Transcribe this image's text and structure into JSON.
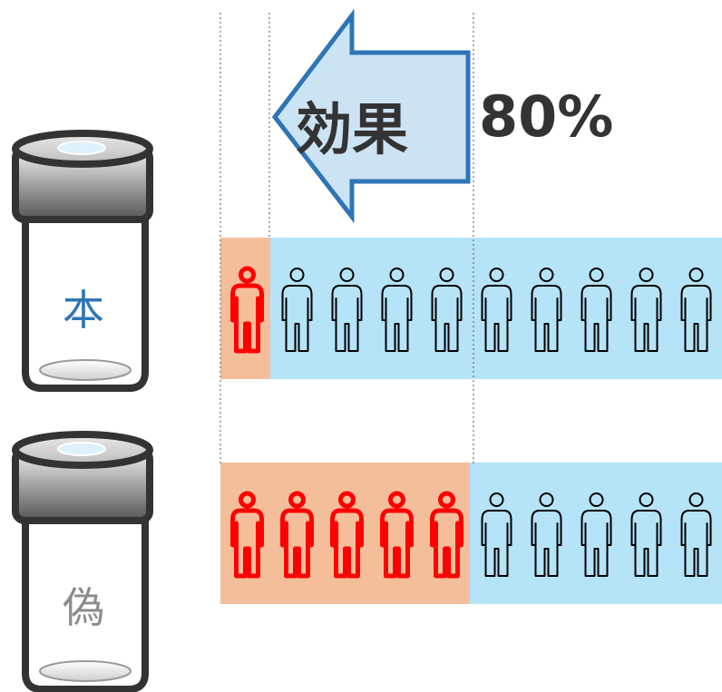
{
  "title": {
    "effect_text": "効果",
    "percent_text": "80%"
  },
  "vials": [
    {
      "label": "本",
      "label_color": "#2e75b6"
    },
    {
      "label": "偽",
      "label_color": "#8c8c8c"
    }
  ],
  "groups": [
    {
      "vial": "本",
      "total": 10,
      "affected": 1
    },
    {
      "vial": "偽",
      "total": 10,
      "affected": 5
    }
  ],
  "colors": {
    "affected_person": "#ff0000",
    "unaffected_person": "#000000",
    "affected_band": "#f4be9b",
    "unaffected_band": "#b5e3f7",
    "arrow_fill": "#cce3f4",
    "arrow_stroke": "#2e75b6",
    "headline_text": "#333333",
    "guide_line": "#555555"
  },
  "icons": {
    "person": "person-icon",
    "vial": "vial-icon",
    "arrow": "arrow-left-icon"
  }
}
